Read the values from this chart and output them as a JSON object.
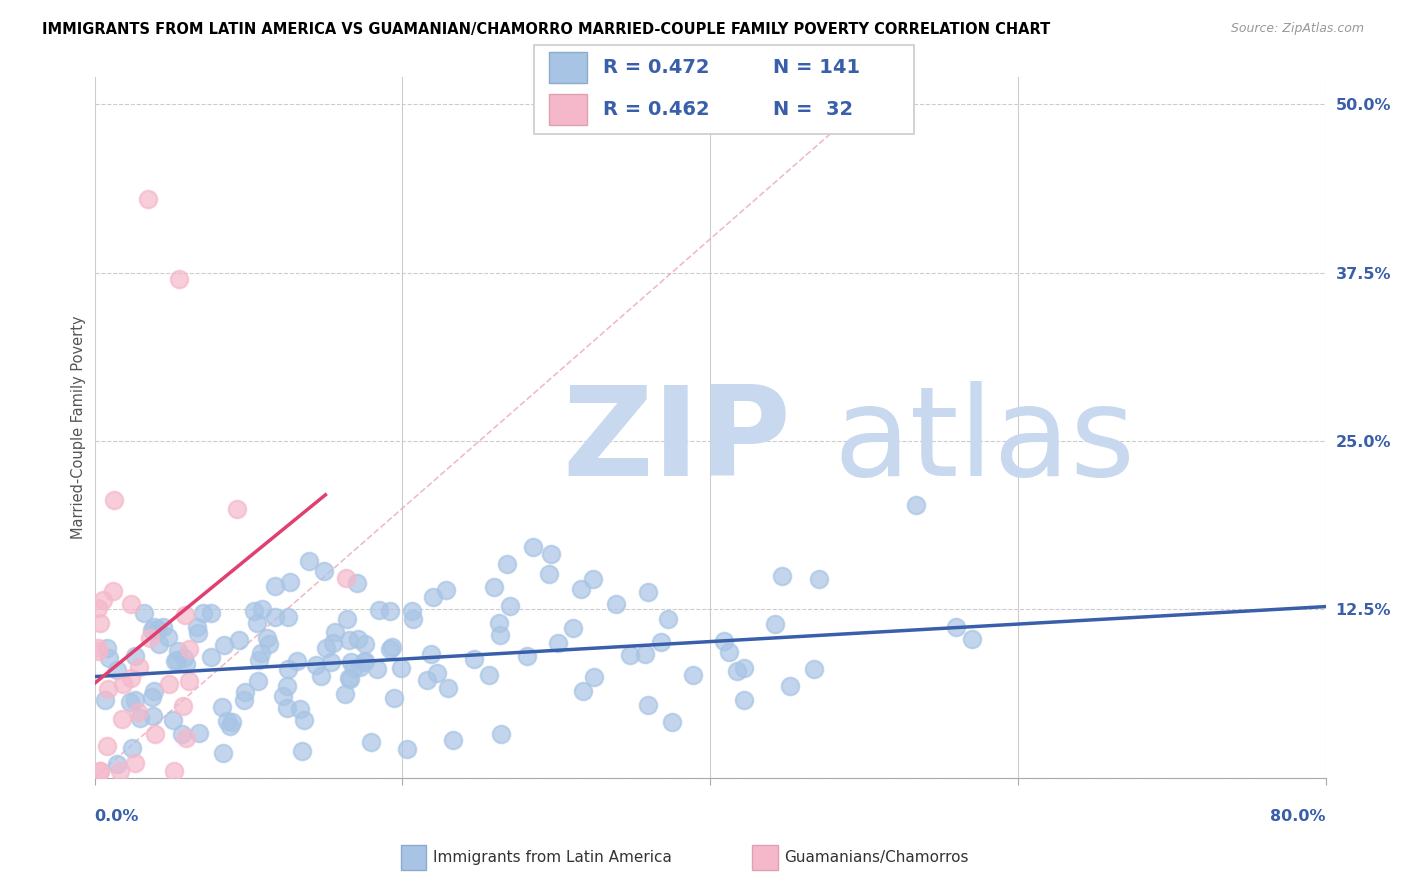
{
  "title": "IMMIGRANTS FROM LATIN AMERICA VS GUAMANIAN/CHAMORRO MARRIED-COUPLE FAMILY POVERTY CORRELATION CHART",
  "source": "Source: ZipAtlas.com",
  "ylabel": "Married-Couple Family Poverty",
  "blue_color": "#a8c4e5",
  "pink_color": "#f5b8cb",
  "trendline_blue_color": "#3a5faa",
  "trendline_pink_color": "#e04070",
  "trendline_pink_dashed_color": "#e8a0b0",
  "watermark_zip": "ZIP",
  "watermark_atlas": "atlas",
  "watermark_color": "#c8d8ee",
  "xlim": [
    0,
    80
  ],
  "ylim": [
    0,
    52
  ],
  "ytick_vals": [
    0,
    12.5,
    25.0,
    37.5,
    50.0
  ],
  "ytick_labels": [
    "",
    "12.5%",
    "25.0%",
    "37.5%",
    "50.0%"
  ],
  "legend_blue_r": "R = 0.472",
  "legend_blue_n": "N = 141",
  "legend_pink_r": "R = 0.462",
  "legend_pink_n": "N =  32",
  "blue_n": 141,
  "pink_n": 32,
  "blue_seed": 17,
  "pink_seed": 99
}
